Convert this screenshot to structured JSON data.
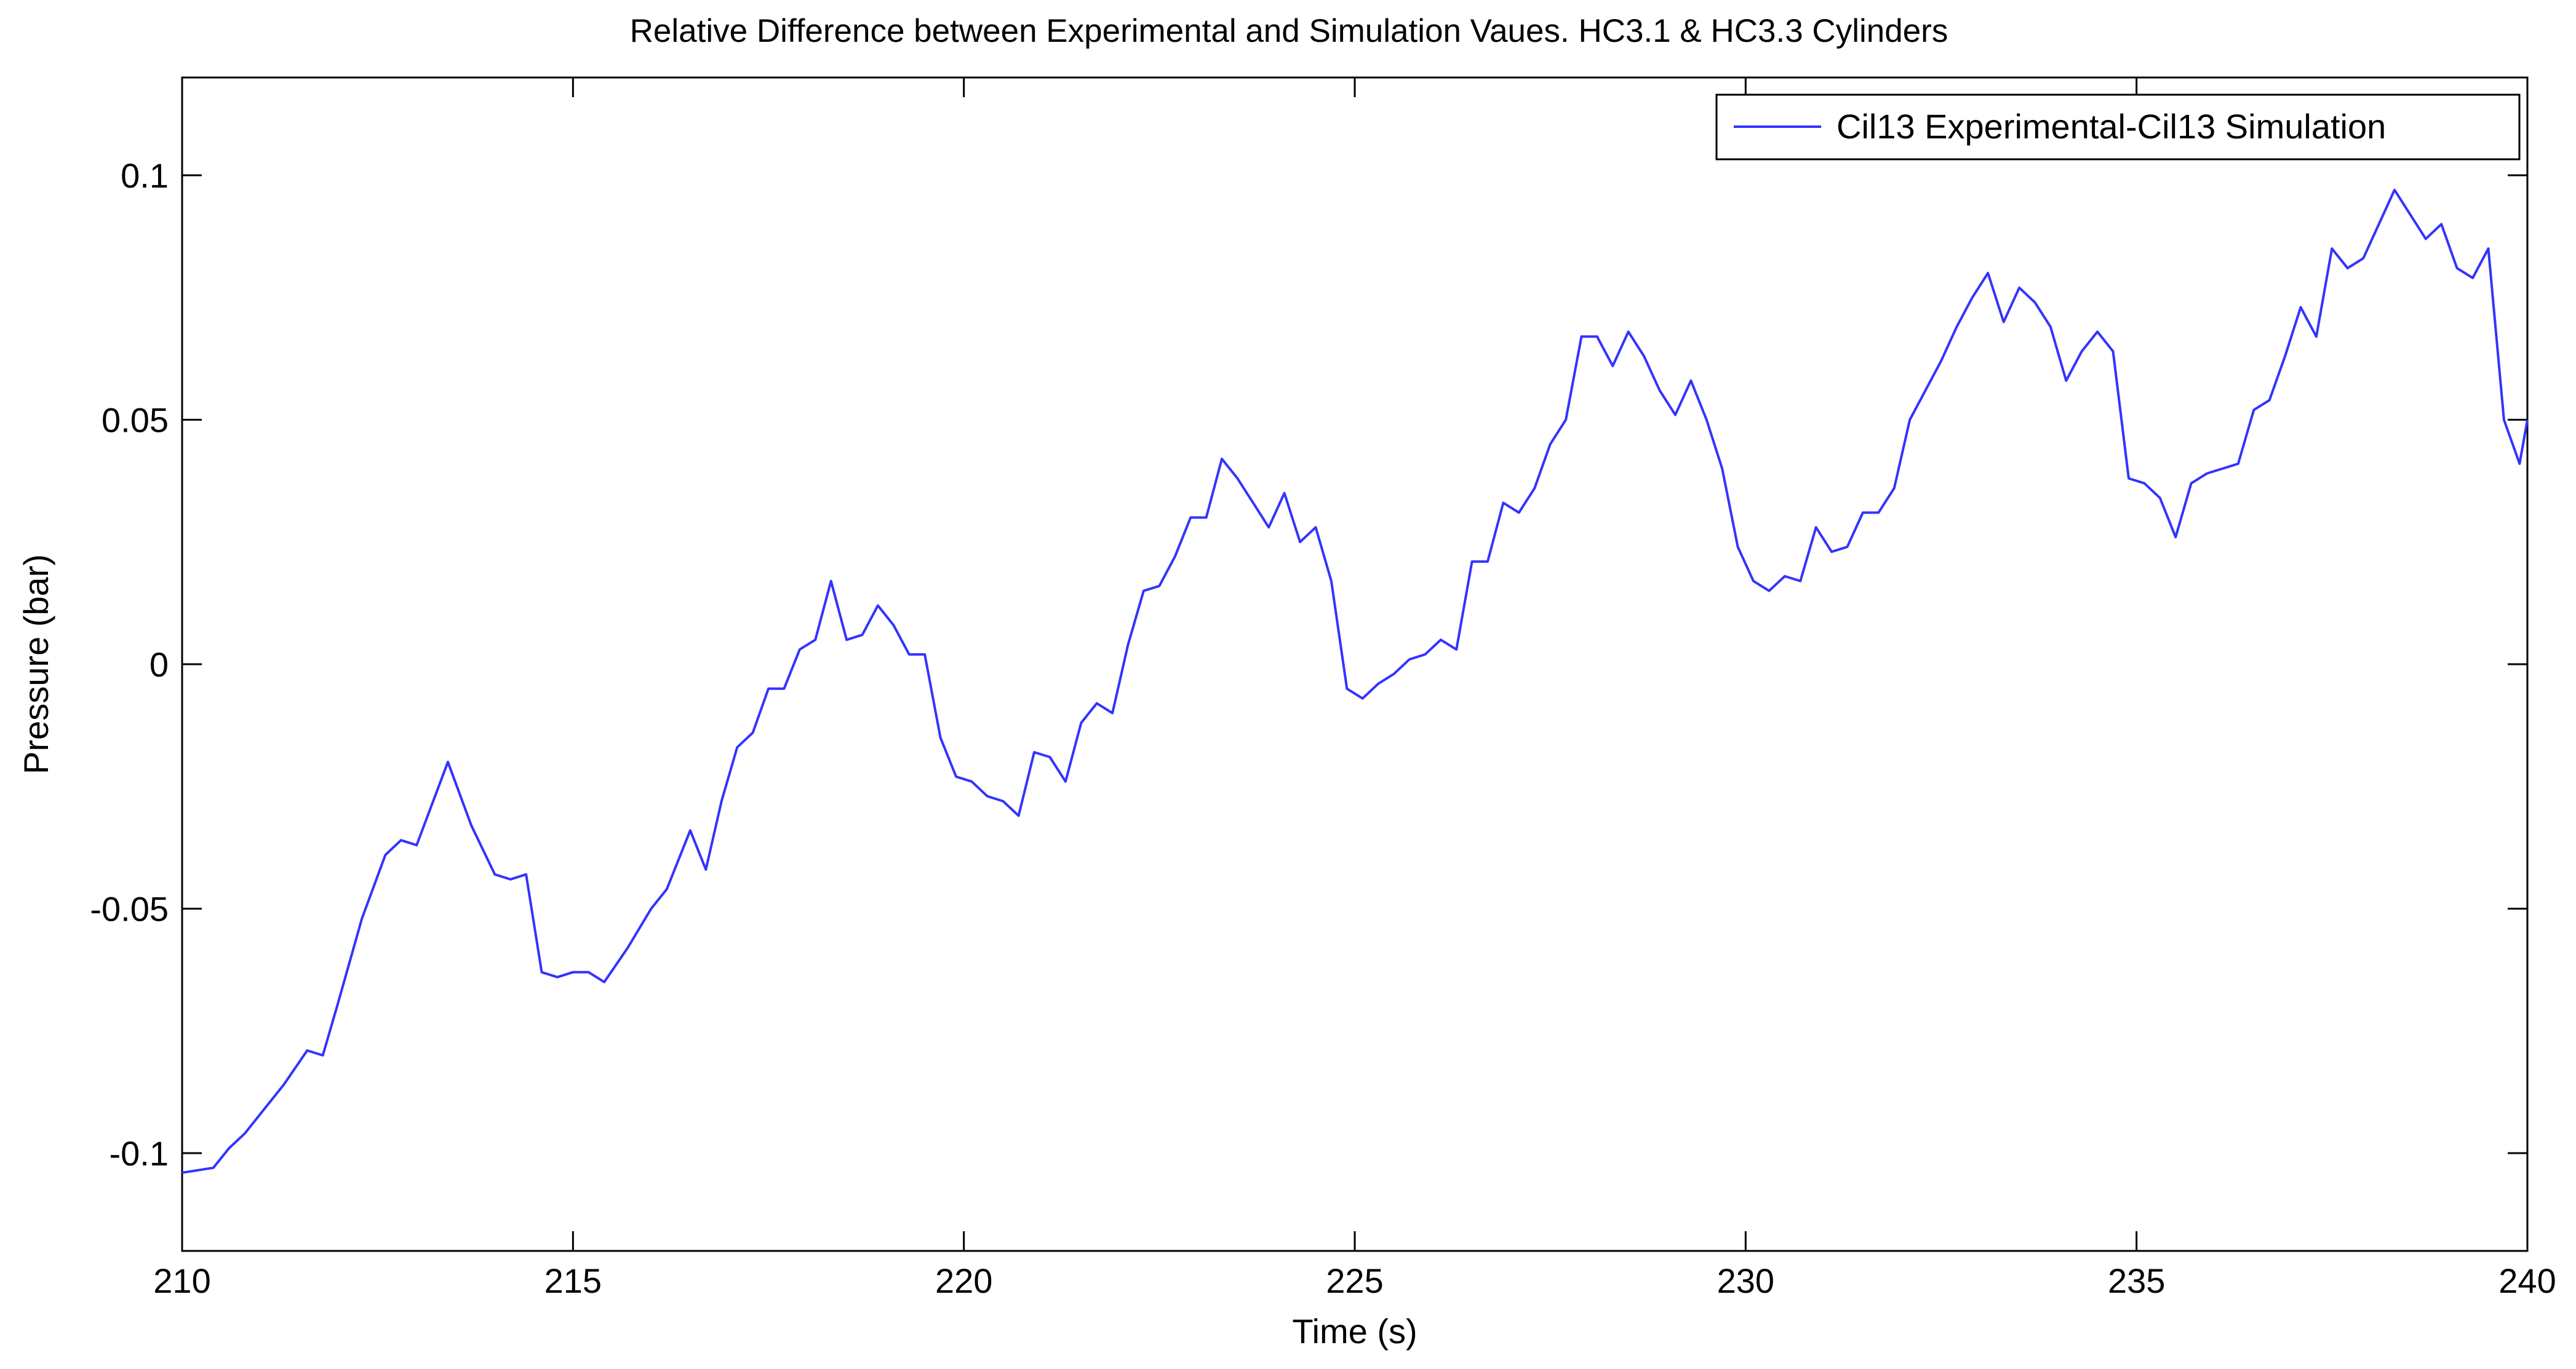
{
  "chart_data": {
    "type": "line",
    "title": "Relative Difference between Experimental and Simulation Vaues. HC3.1 & HC3.3 Cylinders",
    "xlabel": "Time (s)",
    "ylabel": "Pressure (bar)",
    "xlim": [
      210,
      240
    ],
    "ylim": [
      -0.12,
      0.12
    ],
    "x_ticks": [
      210,
      215,
      220,
      225,
      230,
      235,
      240
    ],
    "y_ticks": [
      -0.1,
      -0.05,
      0,
      0.05,
      0.1
    ],
    "x_tick_labels": [
      "210",
      "215",
      "220",
      "225",
      "230",
      "235",
      "240"
    ],
    "y_tick_labels": [
      "-0.1",
      "-0.05",
      "0",
      "0.05",
      "0.1"
    ],
    "grid": false,
    "legend_position": "top-right",
    "series": [
      {
        "name": "Cil13 Experimental-Cil13 Simulation",
        "color": "#3333ff",
        "x": [
          210.0,
          210.4,
          210.6,
          210.8,
          211.0,
          211.3,
          211.6,
          211.8,
          212.0,
          212.3,
          212.6,
          212.8,
          213.0,
          213.4,
          213.7,
          214.0,
          214.2,
          214.4,
          214.6,
          214.8,
          215.0,
          215.2,
          215.4,
          215.7,
          216.0,
          216.2,
          216.5,
          216.7,
          216.9,
          217.1,
          217.3,
          217.5,
          217.7,
          217.9,
          218.1,
          218.3,
          218.5,
          218.7,
          218.9,
          219.1,
          219.3,
          219.5,
          219.7,
          219.9,
          220.1,
          220.3,
          220.5,
          220.7,
          220.9,
          221.1,
          221.3,
          221.5,
          221.7,
          221.9,
          222.1,
          222.3,
          222.5,
          222.7,
          222.9,
          223.1,
          223.3,
          223.5,
          223.7,
          223.9,
          224.1,
          224.3,
          224.5,
          224.7,
          224.9,
          225.1,
          225.3,
          225.5,
          225.7,
          225.9,
          226.1,
          226.3,
          226.5,
          226.7,
          226.9,
          227.1,
          227.3,
          227.5,
          227.7,
          227.9,
          228.1,
          228.3,
          228.5,
          228.7,
          228.9,
          229.1,
          229.3,
          229.5,
          229.7,
          229.9,
          230.1,
          230.3,
          230.5,
          230.7,
          230.9,
          231.1,
          231.3,
          231.5,
          231.7,
          231.9,
          232.1,
          232.3,
          232.5,
          232.7,
          232.9,
          233.1,
          233.3,
          233.5,
          233.7,
          233.9,
          234.1,
          234.3,
          234.5,
          234.7,
          234.9,
          235.1,
          235.3,
          235.5,
          235.7,
          235.9,
          236.1,
          236.3,
          236.5,
          236.7,
          236.9,
          237.1,
          237.3,
          237.5,
          237.7,
          237.9,
          238.1,
          238.3,
          238.5,
          238.7,
          238.9,
          239.1,
          239.3,
          239.5,
          239.7,
          239.9,
          240.0
        ],
        "y": [
          -0.104,
          -0.103,
          -0.099,
          -0.096,
          -0.092,
          -0.086,
          -0.079,
          -0.08,
          -0.069,
          -0.052,
          -0.039,
          -0.036,
          -0.037,
          -0.02,
          -0.033,
          -0.043,
          -0.044,
          -0.043,
          -0.063,
          -0.064,
          -0.063,
          -0.063,
          -0.065,
          -0.058,
          -0.05,
          -0.046,
          -0.034,
          -0.042,
          -0.028,
          -0.017,
          -0.014,
          -0.005,
          -0.005,
          0.003,
          0.005,
          0.017,
          0.005,
          0.006,
          0.012,
          0.008,
          0.002,
          0.002,
          -0.015,
          -0.023,
          -0.024,
          -0.027,
          -0.028,
          -0.031,
          -0.018,
          -0.019,
          -0.024,
          -0.012,
          -0.008,
          -0.01,
          0.004,
          0.015,
          0.016,
          0.022,
          0.03,
          0.03,
          0.042,
          0.038,
          0.033,
          0.028,
          0.035,
          0.025,
          0.028,
          0.017,
          -0.005,
          -0.007,
          -0.004,
          -0.002,
          0.001,
          0.002,
          0.005,
          0.003,
          0.021,
          0.021,
          0.033,
          0.031,
          0.036,
          0.045,
          0.05,
          0.067,
          0.067,
          0.061,
          0.068,
          0.063,
          0.056,
          0.051,
          0.058,
          0.05,
          0.04,
          0.024,
          0.017,
          0.015,
          0.018,
          0.017,
          0.028,
          0.023,
          0.024,
          0.031,
          0.031,
          0.036,
          0.05,
          0.056,
          0.062,
          0.069,
          0.075,
          0.08,
          0.07,
          0.077,
          0.074,
          0.069,
          0.058,
          0.064,
          0.068,
          0.064,
          0.038,
          0.037,
          0.034,
          0.026,
          0.037,
          0.039,
          0.04,
          0.041,
          0.052,
          0.054,
          0.063,
          0.073,
          0.067,
          0.085,
          0.081,
          0.083,
          0.09,
          0.097,
          0.092,
          0.087,
          0.09,
          0.081,
          0.079,
          0.085,
          0.05,
          0.041,
          0.05
        ]
      }
    ]
  }
}
